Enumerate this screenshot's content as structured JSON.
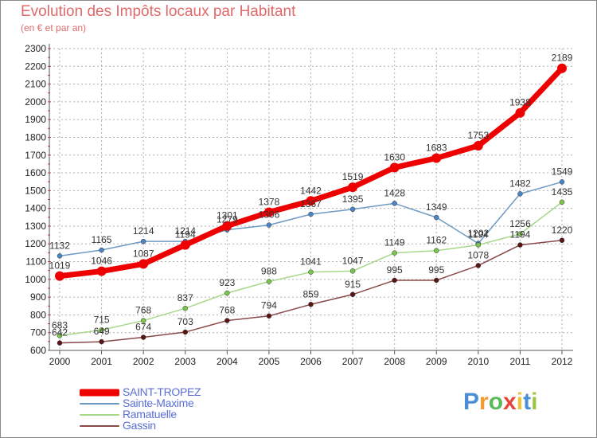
{
  "title": "Evolution des Impôts locaux par Habitant",
  "subtitle": "(en € et par an)",
  "colors": {
    "title": "#e06a6a",
    "axis": "#555555",
    "grid": "#b0b0b0",
    "background": "#ffffff"
  },
  "logo": {
    "text": "Proxiti",
    "letter_colors": [
      "#4a8fd4",
      "#f29a2e",
      "#5cb85c",
      "#e8463a",
      "#f2c230",
      "#4a8fd4",
      "#9bc53d"
    ]
  },
  "chart_data": {
    "type": "line",
    "title": "Evolution des Impôts locaux par Habitant",
    "subtitle": "(en € et par an)",
    "xlabel": "",
    "ylabel": "",
    "x": [
      "2000",
      "2001",
      "2002",
      "2003",
      "2004",
      "2005",
      "2006",
      "2007",
      "2008",
      "2009",
      "2010",
      "2011",
      "2012"
    ],
    "ylim": [
      600,
      2300
    ],
    "yticks": [
      600,
      700,
      800,
      900,
      1000,
      1100,
      1200,
      1300,
      1400,
      1500,
      1600,
      1700,
      1800,
      1900,
      2000,
      2100,
      2200,
      2300
    ],
    "grid": true,
    "legend_position": "bottom-left",
    "series": [
      {
        "name": "Sainte-Maxime",
        "color": "#6d9bc3",
        "marker": "#4a86c7",
        "width": 1.5,
        "values": [
          1132,
          1165,
          1214,
          1214,
          1279,
          1306,
          1367,
          1395,
          1428,
          1349,
          1202,
          1482,
          1549
        ]
      },
      {
        "name": "Ramatuelle",
        "color": "#a8d88a",
        "marker": "#7dc44d",
        "width": 1.5,
        "values": [
          683,
          715,
          768,
          837,
          923,
          988,
          1041,
          1047,
          1149,
          1162,
          1194,
          1256,
          1435
        ]
      },
      {
        "name": "Gassin",
        "color": "#8b4a4a",
        "marker": "#5a1515",
        "width": 1.5,
        "values": [
          642,
          649,
          674,
          703,
          768,
          794,
          859,
          915,
          995,
          995,
          1078,
          1194,
          1220
        ]
      },
      {
        "name": "SAINT-TROPEZ",
        "color": "#ee0000",
        "marker": "#ee0000",
        "width": 7,
        "values": [
          1019,
          1046,
          1087,
          1194,
          1301,
          1378,
          1442,
          1519,
          1630,
          1683,
          1753,
          1938,
          2189
        ]
      }
    ],
    "data_labels": {
      "Sainte-Maxime": [
        "1132",
        "1165",
        "1214",
        "1214",
        "1279",
        "1306",
        "1367",
        "1395",
        "1428",
        "1349",
        "1202",
        "1482",
        "1549"
      ],
      "Ramatuelle": [
        "683",
        "715",
        "768",
        "837",
        "923",
        "988",
        "1041",
        "1047",
        "1149",
        "1162",
        "1194",
        "1256",
        "1435"
      ],
      "Gassin": [
        "642",
        "649",
        "674",
        "703",
        "768",
        "794",
        "859",
        "915",
        "995",
        "995",
        "1078",
        "1194",
        "1220"
      ],
      "SAINT-TROPEZ": [
        "1019",
        "1046",
        "1087",
        "1194",
        "1301",
        "1378",
        "1442",
        "1519",
        "1630",
        "1683",
        "1753",
        "1938",
        "2189"
      ]
    }
  },
  "legend": {
    "items": [
      {
        "label": "SAINT-TROPEZ",
        "color": "#ee0000",
        "text_color": "#5a6ed8"
      },
      {
        "label": "Sainte-Maxime",
        "color": "#6d9bc3",
        "text_color": "#5a6ed8"
      },
      {
        "label": "Ramatuelle",
        "color": "#a8d88a",
        "text_color": "#5a6ed8"
      },
      {
        "label": "Gassin",
        "color": "#8b4a4a",
        "text_color": "#5a6ed8"
      }
    ]
  }
}
